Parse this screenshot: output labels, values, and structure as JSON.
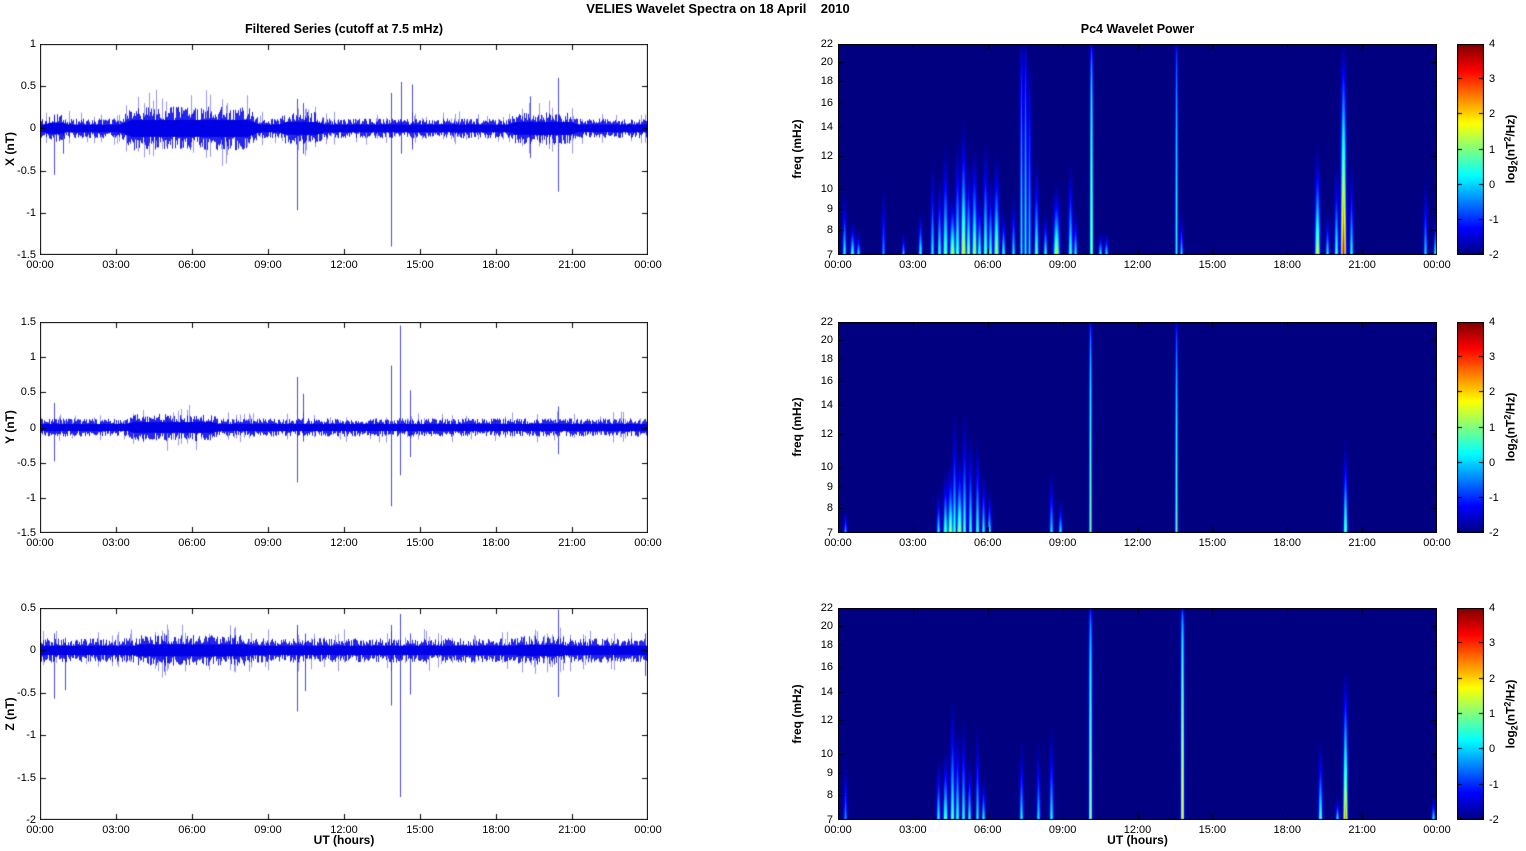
{
  "chart_data": {
    "figure_title": "VELIES Wavelet Spectra on 18 April    2010",
    "time_axis": {
      "label": "UT (hours)",
      "ticks": [
        "00:00",
        "03:00",
        "06:00",
        "09:00",
        "12:00",
        "15:00",
        "18:00",
        "21:00",
        "00:00"
      ],
      "range_hours": [
        0,
        24
      ]
    },
    "filtered_series": {
      "type": "line",
      "title": "Filtered Series (cutoff at 7.5 mHz)",
      "line_color": "#0000E6",
      "panels": [
        {
          "component": "X",
          "ylabel": "X (nT)",
          "ylim": [
            -1.5,
            1
          ],
          "yticks": [
            "1",
            "0.5",
            "0",
            "-0.5",
            "-1",
            "-1.5"
          ],
          "noise": {
            "base_amp": 0.09,
            "bursts": [
              {
                "t0": 0.0,
                "t1": 1.2,
                "amp": 0.13
              },
              {
                "t0": 3.2,
                "t1": 8.6,
                "amp": 0.2
              },
              {
                "t0": 9.3,
                "t1": 11.3,
                "amp": 0.15
              },
              {
                "t0": 18.4,
                "t1": 21.3,
                "amp": 0.15
              }
            ]
          },
          "spikes": [
            {
              "t": 0.55,
              "min": -0.55,
              "max": 0.15
            },
            {
              "t": 0.9,
              "min": -0.3,
              "max": 0.1
            },
            {
              "t": 10.15,
              "min": -0.97,
              "max": 0.35
            },
            {
              "t": 10.4,
              "min": -0.3,
              "max": 0.3
            },
            {
              "t": 13.85,
              "min": -1.4,
              "max": 0.42
            },
            {
              "t": 14.25,
              "min": -0.3,
              "max": 0.55
            },
            {
              "t": 14.7,
              "min": -0.25,
              "max": 0.52
            },
            {
              "t": 19.35,
              "min": -0.35,
              "max": 0.38
            },
            {
              "t": 20.45,
              "min": -0.75,
              "max": 0.6
            },
            {
              "t": 23.95,
              "min": -0.35,
              "max": 0.3
            }
          ]
        },
        {
          "component": "Y",
          "ylabel": "Y (nT)",
          "ylim": [
            -1.5,
            1.5
          ],
          "yticks": [
            "1.5",
            "1",
            "0.5",
            "0",
            "-0.5",
            "-1",
            "-1.5"
          ],
          "noise": {
            "base_amp": 0.1,
            "bursts": [
              {
                "t0": 3.3,
                "t1": 7.2,
                "amp": 0.15
              }
            ]
          },
          "spikes": [
            {
              "t": 0.55,
              "min": -0.48,
              "max": 0.35
            },
            {
              "t": 10.15,
              "min": -0.78,
              "max": 0.72
            },
            {
              "t": 10.4,
              "min": -0.2,
              "max": 0.48
            },
            {
              "t": 13.85,
              "min": -1.12,
              "max": 0.88
            },
            {
              "t": 14.2,
              "min": -0.68,
              "max": 1.45
            },
            {
              "t": 14.6,
              "min": -0.42,
              "max": 0.53
            },
            {
              "t": 20.45,
              "min": -0.38,
              "max": 0.3
            }
          ]
        },
        {
          "component": "Z",
          "ylabel": "Z (nT)",
          "ylim": [
            -2,
            0.5
          ],
          "yticks": [
            "0.5",
            "0",
            "-0.5",
            "-1",
            "-1.5",
            "-2"
          ],
          "noise": {
            "base_amp": 0.11,
            "bursts": [
              {
                "t0": 3.5,
                "t1": 8.5,
                "amp": 0.14
              },
              {
                "t0": 18.5,
                "t1": 21.0,
                "amp": 0.13
              }
            ]
          },
          "spikes": [
            {
              "t": 0.55,
              "min": -0.57,
              "max": 0.2
            },
            {
              "t": 1.0,
              "min": -0.47,
              "max": 0.15
            },
            {
              "t": 4.9,
              "min": -0.25,
              "max": 0.2
            },
            {
              "t": 10.15,
              "min": -0.72,
              "max": 0.3
            },
            {
              "t": 10.45,
              "min": -0.48,
              "max": 0.2
            },
            {
              "t": 13.85,
              "min": -0.65,
              "max": 0.3
            },
            {
              "t": 14.2,
              "min": -1.73,
              "max": 0.43
            },
            {
              "t": 14.6,
              "min": -0.52,
              "max": 0.2
            },
            {
              "t": 20.45,
              "min": -0.55,
              "max": 0.48
            },
            {
              "t": 23.9,
              "min": -0.3,
              "max": 0.2
            }
          ]
        }
      ]
    },
    "wavelet_power": {
      "type": "heatmap",
      "title": "Pc4 Wavelet Power",
      "ylabel": "freq (mHz)",
      "freq_ticks": [
        22,
        20,
        18,
        16,
        14,
        12,
        10,
        9,
        8,
        7
      ],
      "freq_range": [
        7,
        22
      ],
      "scale": "log",
      "background_color": "#000080",
      "colorbar": {
        "range": [
          -2,
          4
        ],
        "ticks": [
          4,
          3,
          2,
          1,
          0,
          -1,
          -2
        ],
        "cmap": "jet",
        "label": "log2(nT^2/Hz)",
        "label_parts": {
          "prefix": "log",
          "sub": "2",
          "mid": "(nT",
          "sup": "2",
          "suffix": "/Hz)"
        }
      },
      "panels": [
        {
          "component": "X",
          "events": [
            {
              "t": 0.25,
              "f": 10,
              "v": 0.6,
              "w": 1.2
            },
            {
              "t": 0.55,
              "f": 8.5,
              "v": 0.9,
              "w": 1.4
            },
            {
              "t": 0.8,
              "f": 8,
              "v": 0.4,
              "w": 1.2
            },
            {
              "t": 1.8,
              "f": 10.5,
              "v": -0.2,
              "w": 1.2
            },
            {
              "t": 2.6,
              "f": 8,
              "v": 0.2,
              "w": 1
            },
            {
              "t": 3.3,
              "f": 9,
              "v": 0.8,
              "w": 1.2
            },
            {
              "t": 3.75,
              "f": 12,
              "v": 0.5,
              "w": 1.2
            },
            {
              "t": 4.05,
              "f": 11,
              "v": 0.8,
              "w": 1.3
            },
            {
              "t": 4.3,
              "f": 13,
              "v": 1.2,
              "w": 1.6
            },
            {
              "t": 4.55,
              "f": 10,
              "v": 1.6,
              "w": 1.8
            },
            {
              "t": 4.75,
              "f": 13.5,
              "v": 1.1,
              "w": 1.4
            },
            {
              "t": 5.0,
              "f": 15,
              "v": 2.1,
              "w": 1.6
            },
            {
              "t": 5.2,
              "f": 12,
              "v": 1.3,
              "w": 1.4
            },
            {
              "t": 5.45,
              "f": 13,
              "v": 1.5,
              "w": 1.6
            },
            {
              "t": 5.65,
              "f": 10,
              "v": 1.0,
              "w": 1.3
            },
            {
              "t": 5.9,
              "f": 13.5,
              "v": 1.2,
              "w": 1.4
            },
            {
              "t": 6.1,
              "f": 11,
              "v": 0.9,
              "w": 1.3
            },
            {
              "t": 6.35,
              "f": 12.5,
              "v": 1.5,
              "w": 1.7
            },
            {
              "t": 6.6,
              "f": 9,
              "v": 0.8,
              "w": 1.2
            },
            {
              "t": 7.0,
              "f": 10,
              "v": 0.4,
              "w": 1.2
            },
            {
              "t": 7.35,
              "f": 22,
              "v": 0.3,
              "w": 1.0,
              "p": 0.5
            },
            {
              "t": 7.5,
              "f": 22,
              "v": 0.4,
              "w": 1.0,
              "p": 0.5
            },
            {
              "t": 7.65,
              "f": 20,
              "v": 0.2,
              "w": 1.0,
              "p": 0.8
            },
            {
              "t": 7.95,
              "f": 12,
              "v": 1.0,
              "w": 1.4
            },
            {
              "t": 8.3,
              "f": 9,
              "v": 0.7,
              "w": 1.2
            },
            {
              "t": 8.75,
              "f": 10.5,
              "v": 1.6,
              "w": 2.0
            },
            {
              "t": 9.3,
              "f": 12,
              "v": 0.8,
              "w": 1.4
            },
            {
              "t": 9.5,
              "f": 9,
              "v": 0.5,
              "w": 1.2
            },
            {
              "t": 10.15,
              "f": 22,
              "v": 1.6,
              "w": 1.0,
              "p": 0.35
            },
            {
              "t": 10.5,
              "f": 8,
              "v": 0.5,
              "w": 1.2
            },
            {
              "t": 10.75,
              "f": 8,
              "v": 0.4,
              "w": 1.2
            },
            {
              "t": 13.55,
              "f": 22,
              "v": 0.5,
              "w": 0.9,
              "p": 0.3
            },
            {
              "t": 13.75,
              "f": 9,
              "v": 0.3,
              "w": 1.0
            },
            {
              "t": 19.2,
              "f": 13,
              "v": 1.9,
              "w": 1.6
            },
            {
              "t": 19.6,
              "f": 9,
              "v": 0.4,
              "w": 1.2
            },
            {
              "t": 19.95,
              "f": 12,
              "v": 0.8,
              "w": 1.3
            },
            {
              "t": 20.25,
              "f": 22,
              "v": 3.4,
              "w": 1.6,
              "p": 1
            },
            {
              "t": 20.55,
              "f": 12,
              "v": 0.6,
              "w": 1.2
            },
            {
              "t": 23.5,
              "f": 11,
              "v": 0.2,
              "w": 1.2
            },
            {
              "t": 23.9,
              "f": 9,
              "v": 0.6,
              "w": 1.2
            }
          ]
        },
        {
          "component": "Y",
          "events": [
            {
              "t": 0.3,
              "f": 8,
              "v": 0.0,
              "w": 1.0
            },
            {
              "t": 4.0,
              "f": 9,
              "v": 0.5,
              "w": 1.2
            },
            {
              "t": 4.3,
              "f": 10,
              "v": 1.1,
              "w": 1.5
            },
            {
              "t": 4.5,
              "f": 10.5,
              "v": 1.4,
              "w": 1.7
            },
            {
              "t": 4.65,
              "f": 14,
              "v": 0.8,
              "w": 1.3
            },
            {
              "t": 4.85,
              "f": 11,
              "v": 1.5,
              "w": 1.8
            },
            {
              "t": 5.05,
              "f": 14,
              "v": 0.9,
              "w": 1.3
            },
            {
              "t": 5.3,
              "f": 12.5,
              "v": 0.7,
              "w": 1.3
            },
            {
              "t": 5.55,
              "f": 12,
              "v": 0.8,
              "w": 1.3
            },
            {
              "t": 5.8,
              "f": 10,
              "v": 0.6,
              "w": 1.2
            },
            {
              "t": 6.05,
              "f": 9,
              "v": 0.5,
              "w": 1.2
            },
            {
              "t": 8.55,
              "f": 10,
              "v": 0.3,
              "w": 1.3
            },
            {
              "t": 8.9,
              "f": 8.5,
              "v": 0.4,
              "w": 1.2
            },
            {
              "t": 10.1,
              "f": 22,
              "v": 1.1,
              "w": 0.9,
              "p": 0.3
            },
            {
              "t": 13.55,
              "f": 22,
              "v": 0.9,
              "w": 0.9,
              "p": 0.35
            },
            {
              "t": 20.3,
              "f": 12,
              "v": 1.3,
              "w": 1.3
            }
          ]
        },
        {
          "component": "Z",
          "events": [
            {
              "t": 0.3,
              "f": 10,
              "v": -0.2,
              "w": 1.1
            },
            {
              "t": 4.0,
              "f": 10,
              "v": 0.6,
              "w": 1.2
            },
            {
              "t": 4.3,
              "f": 10.5,
              "v": 1.1,
              "w": 1.5
            },
            {
              "t": 4.55,
              "f": 14,
              "v": 1.0,
              "w": 1.4
            },
            {
              "t": 4.75,
              "f": 12,
              "v": 0.8,
              "w": 1.3
            },
            {
              "t": 5.0,
              "f": 12.5,
              "v": 0.7,
              "w": 1.3
            },
            {
              "t": 5.25,
              "f": 10,
              "v": 0.6,
              "w": 1.2
            },
            {
              "t": 5.55,
              "f": 12,
              "v": 0.4,
              "w": 1.2
            },
            {
              "t": 5.8,
              "f": 9,
              "v": 0.5,
              "w": 1.2
            },
            {
              "t": 7.35,
              "f": 11,
              "v": 0.5,
              "w": 1.2
            },
            {
              "t": 8.0,
              "f": 11,
              "v": 0.3,
              "w": 1.2
            },
            {
              "t": 8.55,
              "f": 12,
              "v": 0.5,
              "w": 1.3
            },
            {
              "t": 10.1,
              "f": 22,
              "v": 1.3,
              "w": 1.1,
              "p": 0.3
            },
            {
              "t": 13.8,
              "f": 22,
              "v": 1.9,
              "w": 1.1,
              "p": 0.3
            },
            {
              "t": 19.3,
              "f": 11,
              "v": 1.0,
              "w": 1.3
            },
            {
              "t": 20.0,
              "f": 8,
              "v": 0.5,
              "w": 1.1
            },
            {
              "t": 20.3,
              "f": 16,
              "v": 2.6,
              "w": 1.4,
              "p": 1.2
            },
            {
              "t": 23.85,
              "f": 8,
              "v": 0.6,
              "w": 1.1
            }
          ]
        }
      ]
    }
  }
}
